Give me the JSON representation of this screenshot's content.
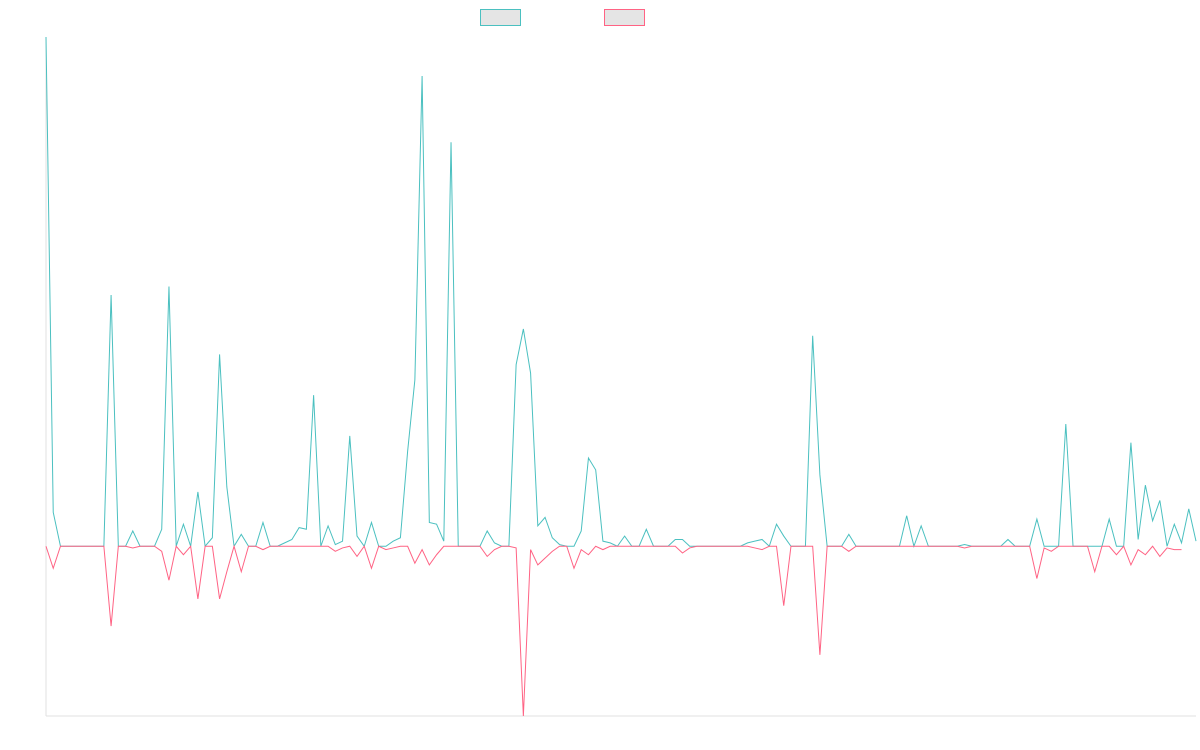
{
  "colors": {
    "series_a": "#4bc0c0",
    "series_b": "#ff6384",
    "legend_fill": "#e5e5e5",
    "axis": "#e0e0e0",
    "background": "#ffffff"
  },
  "chart_data": {
    "type": "line",
    "title": "",
    "xlabel": "",
    "ylabel": "",
    "grid": false,
    "legend_position": "top-center",
    "ylim": [
      -100,
      300
    ],
    "series": [
      {
        "color": "#4bc0c0",
        "values": [
          300,
          20,
          0,
          0,
          0,
          0,
          0,
          0,
          0,
          148,
          0,
          0,
          9,
          0,
          0,
          0,
          10,
          153,
          0,
          13,
          0,
          32,
          0,
          5,
          113,
          35,
          0,
          7,
          0,
          0,
          14,
          0,
          0,
          2,
          4,
          11,
          10,
          89,
          0,
          12,
          1,
          3,
          65,
          6,
          0,
          14,
          0,
          0,
          3,
          5,
          56,
          98,
          277,
          14,
          13,
          3,
          238,
          0,
          0,
          0,
          0,
          9,
          2,
          0,
          0,
          107,
          128,
          102,
          12,
          17,
          5,
          1,
          0,
          0,
          9,
          52,
          45,
          3,
          2,
          0,
          6,
          0,
          0,
          10,
          0,
          0,
          0,
          4,
          4,
          0,
          0,
          0,
          0,
          0,
          0,
          0,
          0,
          2,
          3,
          4,
          0,
          13,
          6,
          0,
          0,
          0,
          124,
          42,
          0,
          0,
          0,
          7,
          0,
          0,
          0,
          0,
          0,
          0,
          0,
          18,
          0,
          12,
          0,
          0,
          0,
          0,
          0,
          1,
          0,
          0,
          0,
          0,
          0,
          4,
          0,
          0,
          0,
          16,
          0,
          0,
          0,
          72,
          0,
          0,
          0,
          0,
          0,
          16,
          0,
          0,
          61,
          4,
          36,
          15,
          27,
          0,
          13,
          2,
          22,
          3
        ]
      },
      {
        "color": "#ff6384",
        "values": [
          0,
          -13,
          0,
          0,
          0,
          0,
          0,
          0,
          0,
          -47,
          0,
          0,
          -1,
          0,
          0,
          0,
          -3,
          -20,
          0,
          -5,
          0,
          -31,
          0,
          0,
          -31,
          -15,
          0,
          -15,
          0,
          0,
          -2,
          0,
          0,
          0,
          0,
          0,
          0,
          0,
          0,
          0,
          -3,
          -1,
          0,
          -6,
          0,
          -13,
          0,
          -2,
          -1,
          0,
          0,
          -10,
          -2,
          -11,
          -5,
          0,
          0,
          0,
          0,
          0,
          0,
          -6,
          -2,
          0,
          0,
          -1,
          -100,
          -2,
          -11,
          -7,
          -3,
          0,
          0,
          -13,
          -2,
          -5,
          0,
          -2,
          0,
          0,
          0,
          0,
          0,
          0,
          0,
          0,
          0,
          0,
          -4,
          -1,
          0,
          0,
          0,
          0,
          0,
          0,
          0,
          0,
          -1,
          -2,
          0,
          0,
          -35,
          0,
          0,
          0,
          0,
          -64,
          0,
          0,
          0,
          -3,
          0,
          0,
          0,
          0,
          0,
          0,
          0,
          0,
          0,
          0,
          0,
          0,
          0,
          0,
          0,
          -1,
          0,
          0,
          0,
          0,
          0,
          0,
          0,
          0,
          0,
          -19,
          -1,
          -3,
          0,
          0,
          0,
          0,
          0,
          -15,
          0,
          0,
          -5,
          0,
          -11,
          -2,
          -5,
          0,
          -6,
          -1,
          -2,
          -2
        ]
      }
    ]
  }
}
